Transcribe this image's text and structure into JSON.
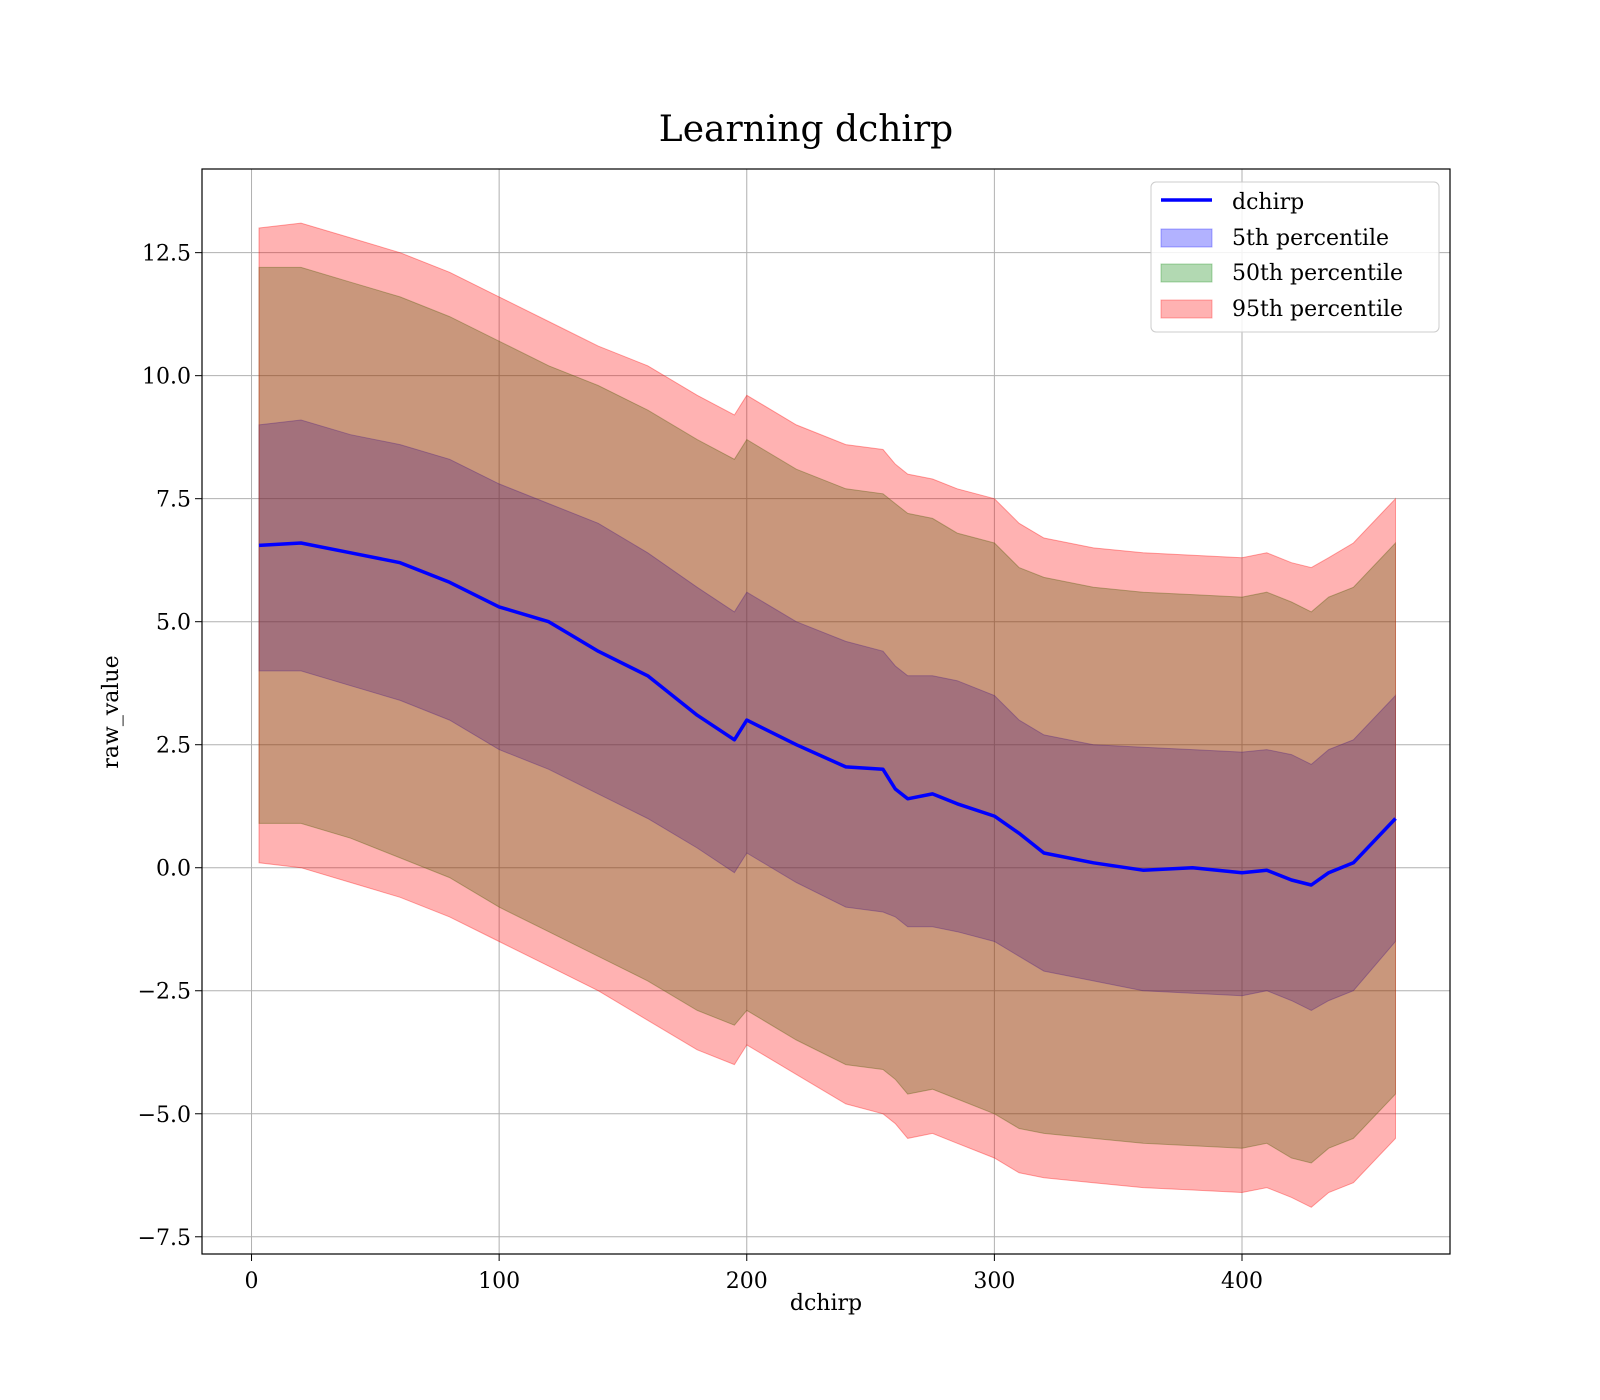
{
  "chart_data": {
    "type": "line",
    "title": "Learning dchirp",
    "xlabel": "dchirp",
    "ylabel": "raw_value",
    "xlim": [
      -20,
      484
    ],
    "ylim": [
      -7.85,
      14.2
    ],
    "xticks": [
      0,
      100,
      200,
      300,
      400
    ],
    "xtick_labels": [
      "0",
      "100",
      "200",
      "300",
      "400"
    ],
    "yticks": [
      -7.5,
      -5.0,
      -2.5,
      0.0,
      2.5,
      5.0,
      7.5,
      10.0,
      12.5
    ],
    "ytick_labels": [
      "−7.5",
      "−5.0",
      "−2.5",
      "0.0",
      "2.5",
      "5.0",
      "7.5",
      "10.0",
      "12.5"
    ],
    "grid": true,
    "legend_position": "top-right",
    "legend": [
      "dchirp",
      "5th percentile",
      "50th percentile",
      "95th percentile"
    ],
    "colors": {
      "line": "#0000ff",
      "band_5": "#0000ff",
      "band_50": "#008000",
      "band_95": "#ff0000"
    },
    "x": [
      3,
      20,
      40,
      60,
      80,
      100,
      120,
      140,
      160,
      180,
      195,
      200,
      220,
      240,
      255,
      260,
      265,
      275,
      285,
      300,
      310,
      320,
      340,
      360,
      380,
      400,
      410,
      420,
      428,
      435,
      445,
      462
    ],
    "series": [
      {
        "name": "dchirp",
        "values": [
          6.55,
          6.6,
          6.4,
          6.2,
          5.8,
          5.3,
          5.0,
          4.4,
          3.9,
          3.1,
          2.6,
          3.0,
          2.5,
          2.05,
          2.0,
          1.6,
          1.4,
          1.5,
          1.3,
          1.05,
          0.7,
          0.3,
          0.1,
          -0.05,
          0.0,
          -0.1,
          -0.05,
          -0.25,
          -0.35,
          -0.1,
          0.1,
          1.0
        ]
      },
      {
        "name": "5th percentile",
        "lower": [
          4.0,
          4.0,
          3.7,
          3.4,
          3.0,
          2.4,
          2.0,
          1.5,
          1.0,
          0.4,
          -0.1,
          0.3,
          -0.3,
          -0.8,
          -0.9,
          -1.0,
          -1.2,
          -1.2,
          -1.3,
          -1.5,
          -1.8,
          -2.1,
          -2.3,
          -2.5,
          -2.55,
          -2.6,
          -2.5,
          -2.7,
          -2.9,
          -2.7,
          -2.5,
          -1.5
        ],
        "upper": [
          9.0,
          9.1,
          8.8,
          8.6,
          8.3,
          7.8,
          7.4,
          7.0,
          6.4,
          5.7,
          5.2,
          5.6,
          5.0,
          4.6,
          4.4,
          4.1,
          3.9,
          3.9,
          3.8,
          3.5,
          3.0,
          2.7,
          2.5,
          2.45,
          2.4,
          2.35,
          2.4,
          2.3,
          2.1,
          2.4,
          2.6,
          3.5
        ]
      },
      {
        "name": "50th percentile",
        "lower": [
          0.9,
          0.9,
          0.6,
          0.2,
          -0.2,
          -0.8,
          -1.3,
          -1.8,
          -2.3,
          -2.9,
          -3.2,
          -2.9,
          -3.5,
          -4.0,
          -4.1,
          -4.3,
          -4.6,
          -4.5,
          -4.7,
          -5.0,
          -5.3,
          -5.4,
          -5.5,
          -5.6,
          -5.65,
          -5.7,
          -5.6,
          -5.9,
          -6.0,
          -5.7,
          -5.5,
          -4.6
        ],
        "upper": [
          12.2,
          12.2,
          11.9,
          11.6,
          11.2,
          10.7,
          10.2,
          9.8,
          9.3,
          8.7,
          8.3,
          8.7,
          8.1,
          7.7,
          7.6,
          7.4,
          7.2,
          7.1,
          6.8,
          6.6,
          6.1,
          5.9,
          5.7,
          5.6,
          5.55,
          5.5,
          5.6,
          5.4,
          5.2,
          5.5,
          5.7,
          6.6
        ]
      },
      {
        "name": "95th percentile",
        "lower": [
          0.1,
          0.0,
          -0.3,
          -0.6,
          -1.0,
          -1.5,
          -2.0,
          -2.5,
          -3.1,
          -3.7,
          -4.0,
          -3.6,
          -4.2,
          -4.8,
          -5.0,
          -5.2,
          -5.5,
          -5.4,
          -5.6,
          -5.9,
          -6.2,
          -6.3,
          -6.4,
          -6.5,
          -6.55,
          -6.6,
          -6.5,
          -6.7,
          -6.9,
          -6.6,
          -6.4,
          -5.5
        ],
        "upper": [
          13.0,
          13.1,
          12.8,
          12.5,
          12.1,
          11.6,
          11.1,
          10.6,
          10.2,
          9.6,
          9.2,
          9.6,
          9.0,
          8.6,
          8.5,
          8.2,
          8.0,
          7.9,
          7.7,
          7.5,
          7.0,
          6.7,
          6.5,
          6.4,
          6.35,
          6.3,
          6.4,
          6.2,
          6.1,
          6.3,
          6.6,
          7.5
        ]
      }
    ]
  }
}
